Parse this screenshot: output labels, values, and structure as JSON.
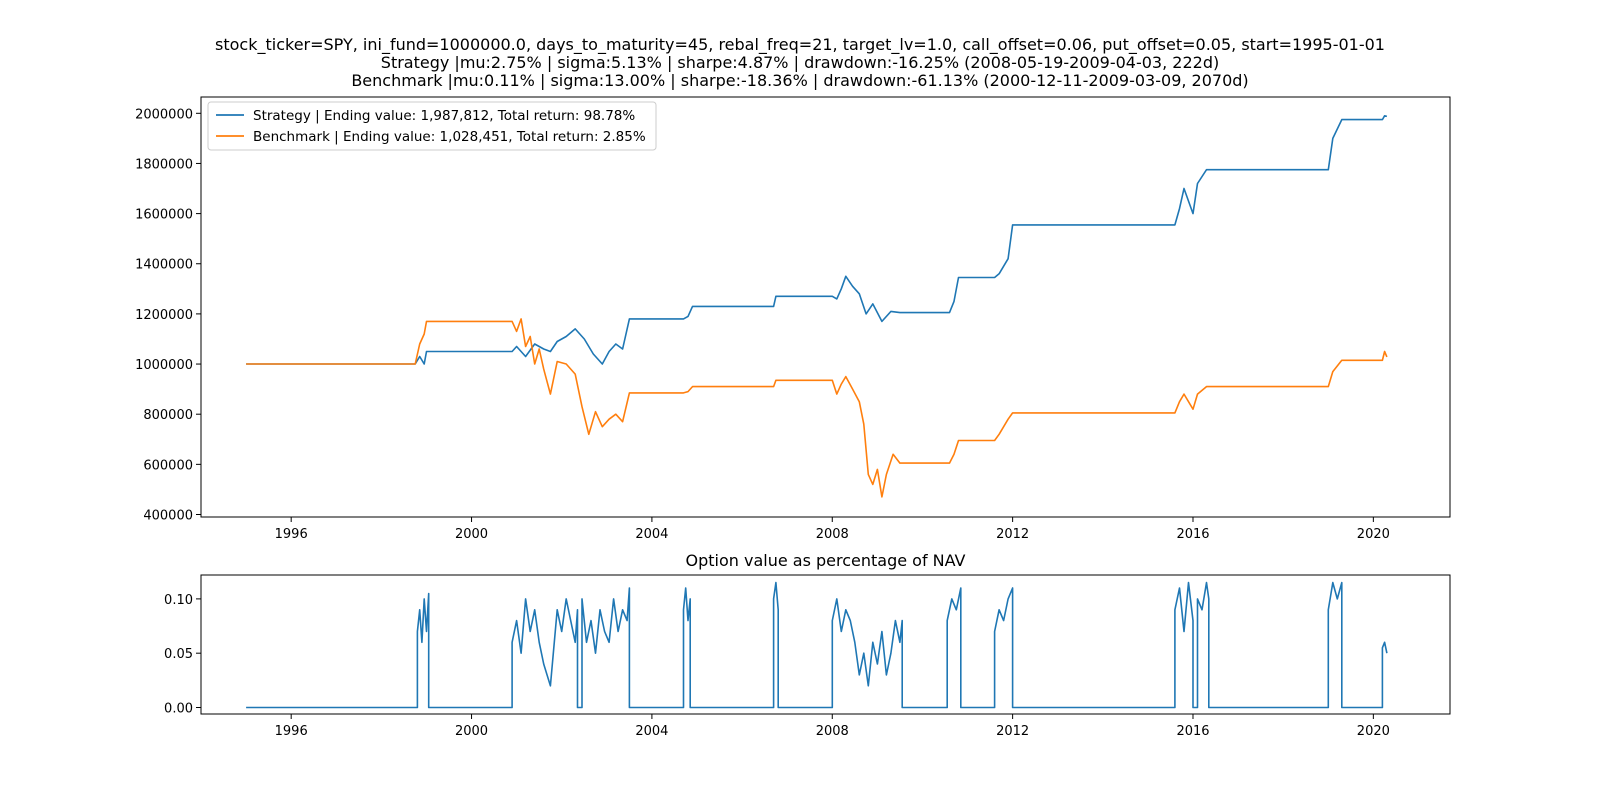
{
  "title_lines": [
    "stock_ticker=SPY, ini_fund=1000000.0, days_to_maturity=45, rebal_freq=21, target_lv=1.0, call_offset=0.06, put_offset=0.05, start=1995-01-01",
    "Strategy |mu:2.75% | sigma:5.13% | sharpe:4.87% | drawdown:-16.25% (2008-05-19-2009-04-03, 222d)",
    "Benchmark |mu:0.11% | sigma:13.00% | sharpe:-18.36% | drawdown:-61.13% (2000-12-11-2009-03-09, 2070d)"
  ],
  "colors": {
    "strategy": "#1f77b4",
    "benchmark": "#ff7f0e",
    "axis": "#000000"
  },
  "chart_data": [
    {
      "type": "line",
      "title": "",
      "xlabel": "",
      "ylabel": "",
      "xlim": [
        1994.0,
        2021.7
      ],
      "ylim": [
        390000,
        2065000
      ],
      "x_ticks": [
        1996,
        2000,
        2004,
        2008,
        2012,
        2016,
        2020
      ],
      "x_tick_labels": [
        "1996",
        "2000",
        "2004",
        "2008",
        "2012",
        "2016",
        "2020"
      ],
      "y_ticks": [
        400000,
        600000,
        800000,
        1000000,
        1200000,
        1400000,
        1600000,
        1800000,
        2000000
      ],
      "y_tick_labels": [
        "400000",
        "600000",
        "800000",
        "1000000",
        "1200000",
        "1400000",
        "1600000",
        "1800000",
        "2000000"
      ],
      "grid": false,
      "legend_position": "top-left",
      "series": [
        {
          "name": "Strategy | Ending value: 1,987,812, Total return: 98.78%",
          "x": [
            1995.0,
            1998.75,
            1998.85,
            1998.95,
            1999.0,
            2000.9,
            2001.0,
            2001.2,
            2001.4,
            2001.6,
            2001.75,
            2001.9,
            2002.1,
            2002.3,
            2002.5,
            2002.7,
            2002.9,
            2003.05,
            2003.2,
            2003.35,
            2003.5,
            2004.7,
            2004.8,
            2004.9,
            2006.7,
            2006.75,
            2008.0,
            2008.1,
            2008.2,
            2008.3,
            2008.45,
            2008.6,
            2008.75,
            2008.9,
            2009.1,
            2009.3,
            2009.5,
            2010.6,
            2010.7,
            2010.8,
            2011.6,
            2011.7,
            2011.9,
            2012.0,
            2015.6,
            2015.7,
            2015.8,
            2016.0,
            2016.1,
            2016.3,
            2016.4,
            2019.0,
            2019.1,
            2019.3,
            2020.2,
            2020.25,
            2020.3
          ],
          "y": [
            1000000,
            1000000,
            1030000,
            1000000,
            1050000,
            1050000,
            1070000,
            1030000,
            1080000,
            1060000,
            1050000,
            1090000,
            1110000,
            1140000,
            1100000,
            1040000,
            1000000,
            1050000,
            1080000,
            1060000,
            1180000,
            1180000,
            1190000,
            1230000,
            1230000,
            1270000,
            1270000,
            1260000,
            1300000,
            1350000,
            1310000,
            1280000,
            1200000,
            1240000,
            1170000,
            1210000,
            1205000,
            1205000,
            1250000,
            1345000,
            1345000,
            1360000,
            1420000,
            1555000,
            1555000,
            1620000,
            1700000,
            1600000,
            1720000,
            1775000,
            1775000,
            1775000,
            1900000,
            1975000,
            1975000,
            1990000,
            1987812
          ]
        },
        {
          "name": "Benchmark | Ending value: 1,028,451, Total return: 2.85%",
          "x": [
            1995.0,
            1998.75,
            1998.85,
            1998.95,
            1999.0,
            2000.9,
            2001.0,
            2001.1,
            2001.2,
            2001.3,
            2001.4,
            2001.5,
            2001.6,
            2001.75,
            2001.9,
            2002.1,
            2002.3,
            2002.45,
            2002.6,
            2002.75,
            2002.9,
            2003.05,
            2003.2,
            2003.35,
            2003.5,
            2004.7,
            2004.8,
            2004.9,
            2006.7,
            2006.75,
            2008.0,
            2008.1,
            2008.2,
            2008.3,
            2008.45,
            2008.6,
            2008.7,
            2008.8,
            2008.9,
            2009.0,
            2009.1,
            2009.2,
            2009.35,
            2009.5,
            2010.6,
            2010.7,
            2010.8,
            2011.6,
            2011.7,
            2011.9,
            2012.0,
            2015.6,
            2015.7,
            2015.8,
            2016.0,
            2016.1,
            2016.3,
            2016.4,
            2019.0,
            2019.1,
            2019.3,
            2020.2,
            2020.25,
            2020.3
          ],
          "y": [
            1000000,
            1000000,
            1080000,
            1120000,
            1170000,
            1170000,
            1130000,
            1180000,
            1070000,
            1110000,
            1000000,
            1060000,
            980000,
            880000,
            1010000,
            1000000,
            960000,
            830000,
            720000,
            810000,
            750000,
            780000,
            800000,
            770000,
            885000,
            885000,
            890000,
            910000,
            910000,
            935000,
            935000,
            880000,
            920000,
            950000,
            900000,
            850000,
            760000,
            560000,
            520000,
            580000,
            470000,
            560000,
            640000,
            605000,
            605000,
            640000,
            695000,
            695000,
            720000,
            780000,
            805000,
            805000,
            850000,
            880000,
            820000,
            880000,
            910000,
            910000,
            910000,
            970000,
            1015000,
            1015000,
            1050000,
            1028451
          ]
        }
      ]
    },
    {
      "type": "line",
      "title": "Option value as percentage of NAV",
      "xlabel": "",
      "ylabel": "",
      "xlim": [
        1994.0,
        2021.7
      ],
      "ylim": [
        -0.006,
        0.122
      ],
      "x_ticks": [
        1996,
        2000,
        2004,
        2008,
        2012,
        2016,
        2020
      ],
      "x_tick_labels": [
        "1996",
        "2000",
        "2004",
        "2008",
        "2012",
        "2016",
        "2020"
      ],
      "y_ticks": [
        0.0,
        0.05,
        0.1
      ],
      "y_tick_labels": [
        "0.00",
        "0.05",
        "0.10"
      ],
      "grid": false,
      "series": [
        {
          "x": [
            1995.0,
            1998.8,
            1998.8,
            1998.85,
            1998.9,
            1998.95,
            1999.0,
            1999.05,
            1999.05,
            2000.9,
            2000.9,
            2001.0,
            2001.1,
            2001.2,
            2001.3,
            2001.4,
            2001.5,
            2001.6,
            2001.75,
            2001.9,
            2002.0,
            2002.1,
            2002.2,
            2002.3,
            2002.35,
            2002.35,
            2002.45,
            2002.45,
            2002.55,
            2002.65,
            2002.75,
            2002.85,
            2002.95,
            2003.05,
            2003.15,
            2003.25,
            2003.35,
            2003.45,
            2003.5,
            2003.5,
            2004.7,
            2004.7,
            2004.75,
            2004.8,
            2004.85,
            2004.85,
            2006.7,
            2006.7,
            2006.75,
            2006.8,
            2006.8,
            2008.0,
            2008.0,
            2008.1,
            2008.2,
            2008.3,
            2008.4,
            2008.5,
            2008.6,
            2008.7,
            2008.8,
            2008.9,
            2009.0,
            2009.1,
            2009.2,
            2009.3,
            2009.4,
            2009.5,
            2009.55,
            2009.55,
            2010.55,
            2010.55,
            2010.65,
            2010.75,
            2010.85,
            2010.85,
            2011.6,
            2011.6,
            2011.7,
            2011.8,
            2011.9,
            2012.0,
            2012.0,
            2015.6,
            2015.6,
            2015.7,
            2015.8,
            2015.9,
            2016.0,
            2016.0,
            2016.1,
            2016.1,
            2016.2,
            2016.3,
            2016.35,
            2016.35,
            2019.0,
            2019.0,
            2019.1,
            2019.2,
            2019.3,
            2019.3,
            2020.2,
            2020.2,
            2020.25,
            2020.3
          ],
          "y": [
            0.0,
            0.0,
            0.07,
            0.09,
            0.06,
            0.1,
            0.07,
            0.105,
            0.0,
            0.0,
            0.06,
            0.08,
            0.05,
            0.1,
            0.07,
            0.09,
            0.06,
            0.04,
            0.02,
            0.09,
            0.07,
            0.1,
            0.08,
            0.06,
            0.09,
            0.0,
            0.0,
            0.1,
            0.06,
            0.08,
            0.05,
            0.09,
            0.07,
            0.06,
            0.1,
            0.07,
            0.09,
            0.08,
            0.11,
            0.0,
            0.0,
            0.09,
            0.11,
            0.08,
            0.1,
            0.0,
            0.0,
            0.1,
            0.115,
            0.09,
            0.0,
            0.0,
            0.08,
            0.1,
            0.07,
            0.09,
            0.08,
            0.06,
            0.03,
            0.05,
            0.02,
            0.06,
            0.04,
            0.07,
            0.03,
            0.05,
            0.08,
            0.06,
            0.08,
            0.0,
            0.0,
            0.08,
            0.1,
            0.09,
            0.11,
            0.0,
            0.0,
            0.07,
            0.09,
            0.08,
            0.1,
            0.11,
            0.0,
            0.0,
            0.09,
            0.11,
            0.07,
            0.115,
            0.08,
            0.0,
            0.0,
            0.1,
            0.09,
            0.115,
            0.1,
            0.0,
            0.0,
            0.09,
            0.115,
            0.1,
            0.115,
            0.0,
            0.0,
            0.055,
            0.06,
            0.05
          ]
        }
      ]
    }
  ]
}
